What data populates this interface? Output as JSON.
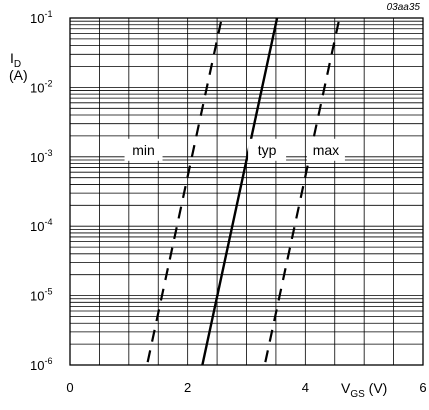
{
  "chart_data": {
    "type": "line",
    "figure_code": "03aa35",
    "ylabel": "I_D",
    "yunit": "(A)",
    "xlabel": "V_GS (V)",
    "xscale": "linear",
    "yscale": "log",
    "xlim": [
      0,
      6
    ],
    "ylim": [
      1e-06,
      0.1
    ],
    "grid": true,
    "x_ticks": [
      {
        "value": 0,
        "label": "0"
      },
      {
        "value": 2,
        "label": "2"
      },
      {
        "value": 4,
        "label": "4"
      },
      {
        "value": 6,
        "label": "6"
      }
    ],
    "y_ticks": [
      {
        "value": 1e-06,
        "base": "10",
        "exp": "-6"
      },
      {
        "value": 1e-05,
        "base": "10",
        "exp": "-5"
      },
      {
        "value": 0.0001,
        "base": "10",
        "exp": "-4"
      },
      {
        "value": 0.001,
        "base": "10",
        "exp": "-3"
      },
      {
        "value": 0.01,
        "base": "10",
        "exp": "-2"
      },
      {
        "value": 0.1,
        "base": "10",
        "exp": "-1"
      }
    ],
    "series": [
      {
        "name": "min",
        "style": "dashed",
        "label_at": [
          1.25,
          0.001
        ],
        "x": [
          1.32,
          2.58
        ],
        "y": [
          1.1e-06,
          0.1
        ]
      },
      {
        "name": "typ",
        "style": "solid",
        "label_at": [
          3.35,
          0.001
        ],
        "x": [
          2.25,
          3.52
        ],
        "y": [
          1e-06,
          0.1
        ]
      },
      {
        "name": "max",
        "style": "dashed",
        "label_at": [
          4.35,
          0.001
        ],
        "x": [
          3.32,
          4.58
        ],
        "y": [
          1.1e-06,
          0.1
        ]
      }
    ]
  }
}
